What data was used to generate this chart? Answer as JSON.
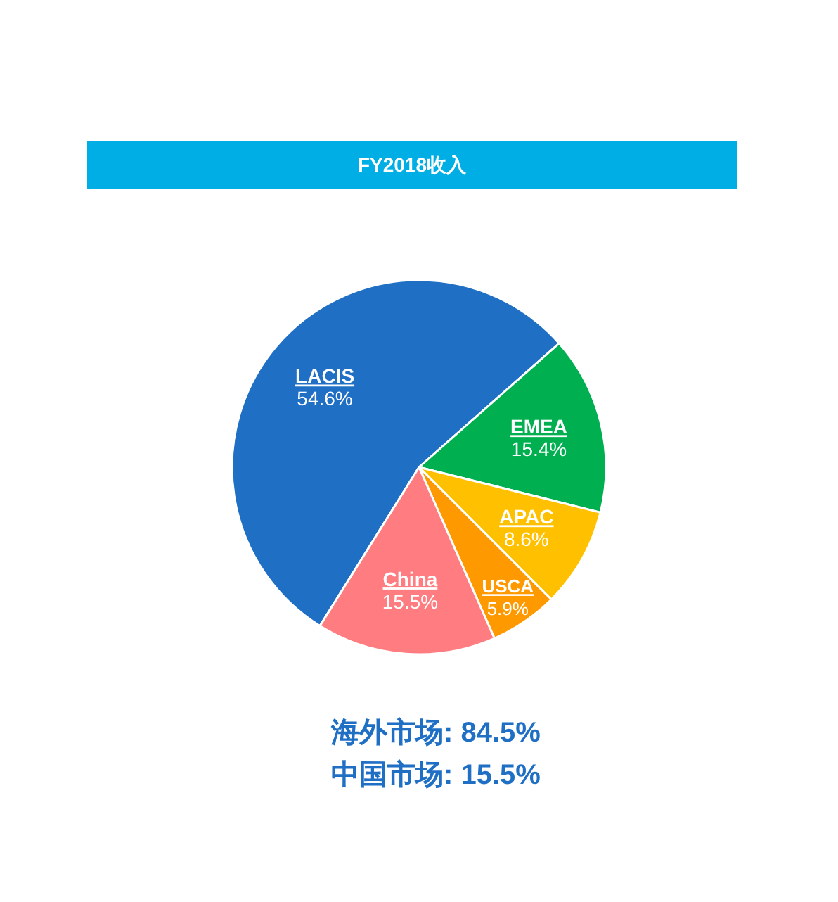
{
  "chart_data": {
    "type": "pie",
    "title": "FY2018收入",
    "categories": [
      "LACIS",
      "EMEA",
      "APAC",
      "USCA",
      "China"
    ],
    "values": [
      54.6,
      15.4,
      8.6,
      5.9,
      15.5
    ],
    "colors": [
      "#1f6fc5",
      "#00b050",
      "#ffc000",
      "#ff9900",
      "#ff7c80"
    ],
    "value_labels": [
      "54.6%",
      "15.4%",
      "8.6%",
      "5.9%",
      "15.5%"
    ],
    "annotations": [
      "海外市场: 84.5%",
      "中国市场: 15.5%"
    ]
  }
}
